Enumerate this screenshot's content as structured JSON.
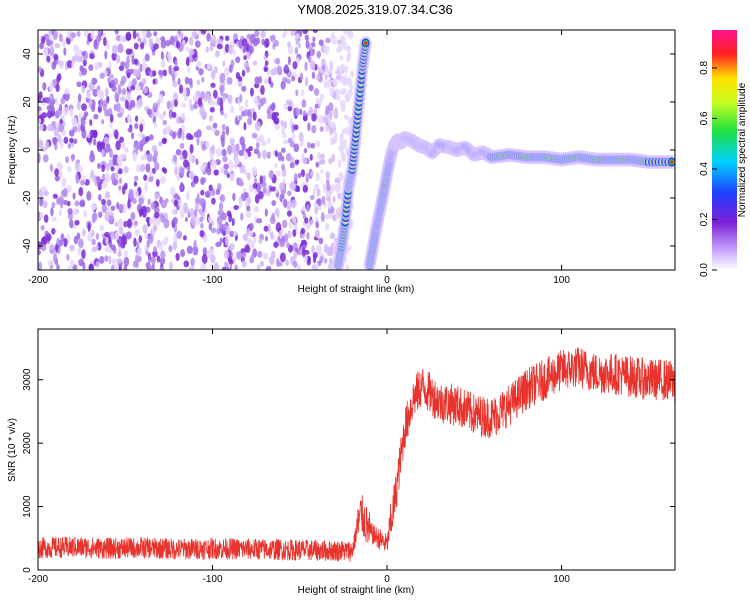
{
  "figure_title": "YM08.2025.319.07.34.C36",
  "colors": {
    "speckle": "#7a2bd6",
    "ridge_core": "#e8322c",
    "snr_line": "#e8322c",
    "colorbar_stops": [
      "#ffffff",
      "#7a1fd6",
      "#2040ff",
      "#00d0ff",
      "#20e040",
      "#ffe000",
      "#ff2020",
      "#ff1493"
    ]
  },
  "chart_data": [
    {
      "type": "heatmap",
      "xlabel": "Height of straight line (km)",
      "ylabel": "Frequency (Hz)",
      "xlim": [
        -200,
        165
      ],
      "ylim": [
        -50,
        50
      ],
      "x_ticks": [
        -200,
        -100,
        0,
        100
      ],
      "y_ticks": [
        -40,
        -20,
        0,
        20,
        40
      ],
      "colorbar": {
        "label": "Normalized spectral amplitude",
        "range": [
          0,
          0.95
        ],
        "ticks": [
          0.0,
          0.2,
          0.4,
          0.6,
          0.8
        ]
      },
      "ridge": {
        "x": [
          -28,
          -26,
          -24,
          -22,
          -20,
          -18,
          -16,
          -14,
          -12,
          -10,
          -8,
          -6,
          -4,
          -2,
          0,
          2,
          4,
          6,
          8,
          10,
          14,
          18,
          22,
          26,
          30,
          36,
          40,
          45,
          50,
          55,
          60,
          70,
          80,
          90,
          100,
          110,
          120,
          130,
          140,
          150,
          165
        ],
        "y": [
          -48,
          -40,
          -30,
          -15,
          -8,
          5,
          20,
          35,
          46,
          -48,
          -40,
          -32,
          -25,
          -18,
          -10,
          -3,
          2,
          4,
          3,
          5,
          4,
          2,
          1,
          -1,
          2,
          1,
          0,
          1,
          -2,
          -1,
          -3,
          -2,
          -3,
          -3,
          -4,
          -3,
          -4,
          -4,
          -4,
          -5,
          -5
        ]
      },
      "noise_region": {
        "x_from": -200,
        "x_to": -20
      }
    },
    {
      "type": "line",
      "xlabel": "Height of straight line (km)",
      "ylabel": "SNR (10 * v/v)",
      "xlim": [
        -200,
        165
      ],
      "ylim": [
        0,
        3800
      ],
      "x_ticks": [
        -200,
        -100,
        0,
        100
      ],
      "y_ticks": [
        0,
        1000,
        2000,
        3000
      ],
      "series": [
        {
          "x": [
            -200,
            -180,
            -160,
            -140,
            -120,
            -100,
            -80,
            -60,
            -40,
            -20,
            -15,
            -10,
            -5,
            0,
            5,
            10,
            15,
            20,
            30,
            40,
            50,
            60,
            70,
            80,
            90,
            100,
            110,
            120,
            130,
            140,
            150,
            160,
            165
          ],
          "y": [
            350,
            360,
            340,
            350,
            330,
            340,
            330,
            320,
            310,
            300,
            900,
            600,
            500,
            400,
            1200,
            2200,
            2700,
            2900,
            2650,
            2600,
            2450,
            2400,
            2600,
            2850,
            3000,
            3150,
            3200,
            3100,
            3100,
            3050,
            3000,
            3000,
            2950
          ]
        }
      ]
    }
  ]
}
